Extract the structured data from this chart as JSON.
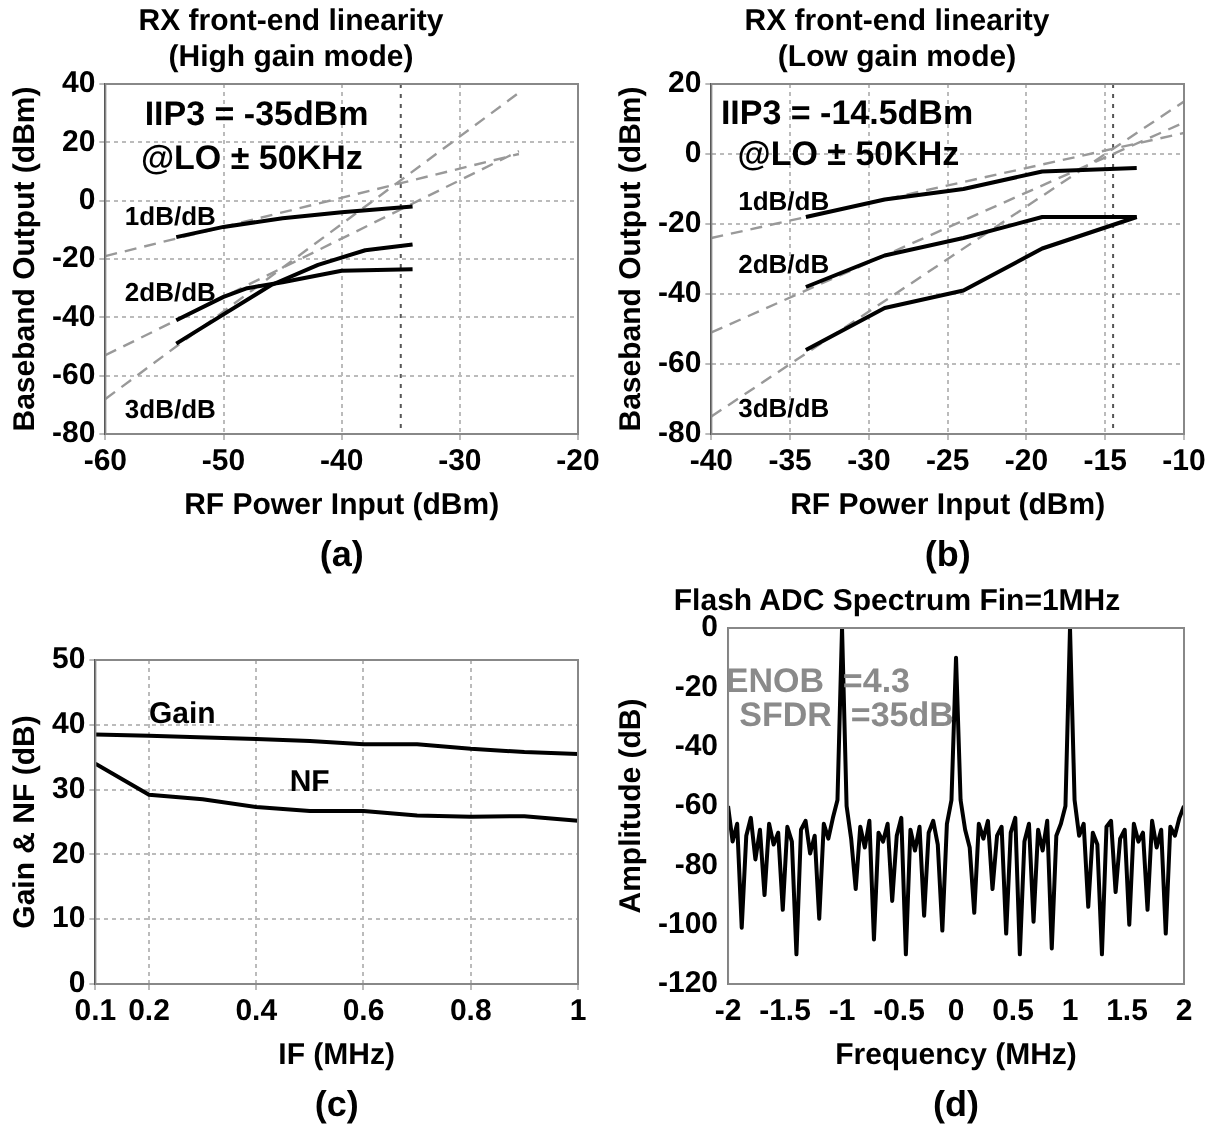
{
  "chart_data": [
    {
      "type": "line",
      "title": "RX front-end linearity",
      "subtitle": "(High gain mode)",
      "xlabel": "RF Power Input (dBm)",
      "ylabel": "Baseband Output (dBm)",
      "xlim": [
        -60,
        -20
      ],
      "xticks": [
        -60,
        -50,
        -40,
        -30,
        -20
      ],
      "ylim": [
        -80,
        40
      ],
      "yticks": [
        -80,
        -60,
        -40,
        -20,
        0,
        20,
        40
      ],
      "grid": true,
      "marker": "none",
      "line_style": "solid",
      "series": [
        {
          "color": "#000000",
          "x": [
            -54,
            -50,
            -45,
            -40,
            -34
          ],
          "values": [
            -12.5,
            -9,
            -6,
            -4,
            -2
          ]
        },
        {
          "color": "#000000",
          "x": [
            -54,
            -50,
            -48,
            -45,
            -40,
            -34
          ],
          "values": [
            -41,
            -33,
            -30,
            -28,
            -24,
            -23.5
          ]
        },
        {
          "color": "#000000",
          "x": [
            -54,
            -50,
            -46,
            -42,
            -38,
            -34
          ],
          "values": [
            -49,
            -39,
            -29,
            -22,
            -17,
            -15
          ]
        },
        {
          "color": "#999999",
          "line_style": "dashed",
          "x": [
            -60,
            -25
          ],
          "values": [
            -19,
            16
          ]
        },
        {
          "color": "#999999",
          "line_style": "dashed",
          "x": [
            -60,
            -25
          ],
          "values": [
            -53,
            17
          ]
        },
        {
          "color": "#999999",
          "line_style": "dashed",
          "x": [
            -60,
            -25
          ],
          "values": [
            -68,
            37
          ]
        }
      ],
      "ref_lines": [
        {
          "axis": "x",
          "value": -35,
          "color": "#555555",
          "line_style": "dotted"
        }
      ],
      "annotations": [
        "1dB/dB",
        "2dB/dB",
        "3dB/dB",
        "IIP3 = -35dBm",
        "@LO ± 50KHz",
        "(a)"
      ]
    },
    {
      "type": "line",
      "title": "RX front-end linearity",
      "subtitle": "(Low gain mode)",
      "xlabel": "RF Power Input (dBm)",
      "ylabel": "Baseband Output (dBm)",
      "xlim": [
        -40,
        -10
      ],
      "xticks": [
        -40,
        -35,
        -30,
        -25,
        -20,
        -15,
        -10
      ],
      "ylim": [
        -80,
        20
      ],
      "yticks": [
        -80,
        -60,
        -40,
        -20,
        0,
        20
      ],
      "grid": true,
      "marker": "none",
      "line_style": "solid",
      "series": [
        {
          "color": "#000000",
          "x": [
            -34,
            -29,
            -24,
            -19,
            -13
          ],
          "values": [
            -18,
            -13,
            -10,
            -5,
            -4
          ]
        },
        {
          "color": "#000000",
          "x": [
            -34,
            -29,
            -24,
            -19,
            -13
          ],
          "values": [
            -38,
            -29,
            -24,
            -18,
            -18
          ]
        },
        {
          "color": "#000000",
          "x": [
            -34,
            -29,
            -24,
            -19,
            -15,
            -13
          ],
          "values": [
            -56,
            -44,
            -39,
            -27,
            -21,
            -18
          ]
        },
        {
          "color": "#999999",
          "line_style": "dashed",
          "x": [
            -40,
            -10
          ],
          "values": [
            -24,
            6
          ]
        },
        {
          "color": "#999999",
          "line_style": "dashed",
          "x": [
            -40,
            -10
          ],
          "values": [
            -51,
            9
          ]
        },
        {
          "color": "#999999",
          "line_style": "dashed",
          "x": [
            -40,
            -10
          ],
          "values": [
            -75,
            15
          ]
        }
      ],
      "ref_lines": [
        {
          "axis": "x",
          "value": -14.5,
          "color": "#555555",
          "line_style": "dotted"
        }
      ],
      "annotations": [
        "1dB/dB",
        "2dB/dB",
        "3dB/dB",
        "IIP3 = -14.5dBm",
        "@LO ± 50KHz",
        "(b)"
      ]
    },
    {
      "type": "line",
      "xlabel": "IF (MHz)",
      "ylabel": "Gain & NF (dB)",
      "xlim": [
        0.1,
        1
      ],
      "xticks": [
        0.1,
        0.2,
        0.4,
        0.6,
        0.8,
        1
      ],
      "ylim": [
        0,
        50
      ],
      "yticks": [
        0,
        10,
        20,
        30,
        40,
        50
      ],
      "grid": true,
      "marker": "none",
      "line_style": "solid",
      "series": [
        {
          "color": "#000000",
          "x": [
            0.1,
            0.2,
            0.4,
            0.5,
            0.6,
            0.7,
            0.8,
            0.9,
            1
          ],
          "values": [
            38.5,
            38.3,
            37.8,
            37.5,
            37,
            37,
            36.3,
            35.8,
            35.5
          ]
        },
        {
          "color": "#000000",
          "x": [
            0.1,
            0.2,
            0.3,
            0.4,
            0.5,
            0.6,
            0.7,
            0.8,
            0.9,
            1
          ],
          "values": [
            34,
            29.2,
            28.5,
            27.3,
            26.7,
            26.7,
            26,
            25.8,
            25.9,
            25.2
          ]
        }
      ],
      "annotations": [
        "Gain",
        "NF",
        "(c)"
      ]
    },
    {
      "type": "line",
      "title": "Flash ADC Spectrum Fin=1MHz",
      "xlabel": "Frequency (MHz)",
      "ylabel": "Amplitude (dB)",
      "xlim": [
        -2,
        2
      ],
      "xticks": [
        -2,
        -1.5,
        -1,
        -0.5,
        0,
        0.5,
        1,
        1.5,
        2
      ],
      "ylim": [
        -120,
        0
      ],
      "yticks": [
        -120,
        -100,
        -80,
        -60,
        -40,
        -20,
        0
      ],
      "marker": "none",
      "line_style": "solid",
      "series": [
        {
          "color": "#000000",
          "x": [
            -2,
            -1.96,
            -1.92,
            -1.88,
            -1.84,
            -1.8,
            -1.76,
            -1.72,
            -1.68,
            -1.64,
            -1.6,
            -1.56,
            -1.52,
            -1.48,
            -1.44,
            -1.4,
            -1.36,
            -1.32,
            -1.28,
            -1.24,
            -1.2,
            -1.16,
            -1.12,
            -1.08,
            -1.04,
            -1,
            -0.96,
            -0.92,
            -0.88,
            -0.84,
            -0.8,
            -0.76,
            -0.72,
            -0.68,
            -0.64,
            -0.6,
            -0.56,
            -0.52,
            -0.48,
            -0.44,
            -0.4,
            -0.36,
            -0.32,
            -0.28,
            -0.24,
            -0.2,
            -0.16,
            -0.12,
            -0.08,
            -0.04,
            0,
            0.04,
            0.08,
            0.12,
            0.16,
            0.2,
            0.24,
            0.28,
            0.32,
            0.36,
            0.4,
            0.44,
            0.48,
            0.52,
            0.56,
            0.6,
            0.64,
            0.68,
            0.72,
            0.76,
            0.8,
            0.84,
            0.88,
            0.92,
            0.96,
            1,
            1.04,
            1.08,
            1.12,
            1.16,
            1.2,
            1.24,
            1.28,
            1.32,
            1.36,
            1.4,
            1.44,
            1.48,
            1.52,
            1.56,
            1.6,
            1.64,
            1.68,
            1.72,
            1.76,
            1.8,
            1.84,
            1.88,
            1.92,
            1.96,
            2
          ],
          "values": [
            -60,
            -72,
            -66,
            -101,
            -70,
            -64,
            -78,
            -68,
            -90,
            -66,
            -73,
            -69,
            -95,
            -67,
            -72,
            -110,
            -68,
            -65,
            -76,
            -70,
            -98,
            -66,
            -71,
            -64,
            -58,
            0,
            -60,
            -71,
            -88,
            -67,
            -74,
            -65,
            -105,
            -69,
            -72,
            -66,
            -92,
            -70,
            -64,
            -110,
            -68,
            -75,
            -67,
            -97,
            -69,
            -65,
            -73,
            -102,
            -66,
            -58,
            -10,
            -58,
            -68,
            -74,
            -96,
            -66,
            -71,
            -65,
            -88,
            -70,
            -67,
            -103,
            -69,
            -64,
            -110,
            -72,
            -66,
            -99,
            -68,
            -75,
            -65,
            -108,
            -70,
            -66,
            -60,
            0,
            -58,
            -70,
            -66,
            -94,
            -69,
            -73,
            -110,
            -67,
            -65,
            -89,
            -71,
            -68,
            -100,
            -66,
            -72,
            -69,
            -95,
            -65,
            -74,
            -68,
            -103,
            -67,
            -70,
            -64,
            -60
          ]
        }
      ],
      "annotations": [
        "ENOB  =4.3",
        "SFDR  =35dB",
        "(d)"
      ]
    }
  ]
}
